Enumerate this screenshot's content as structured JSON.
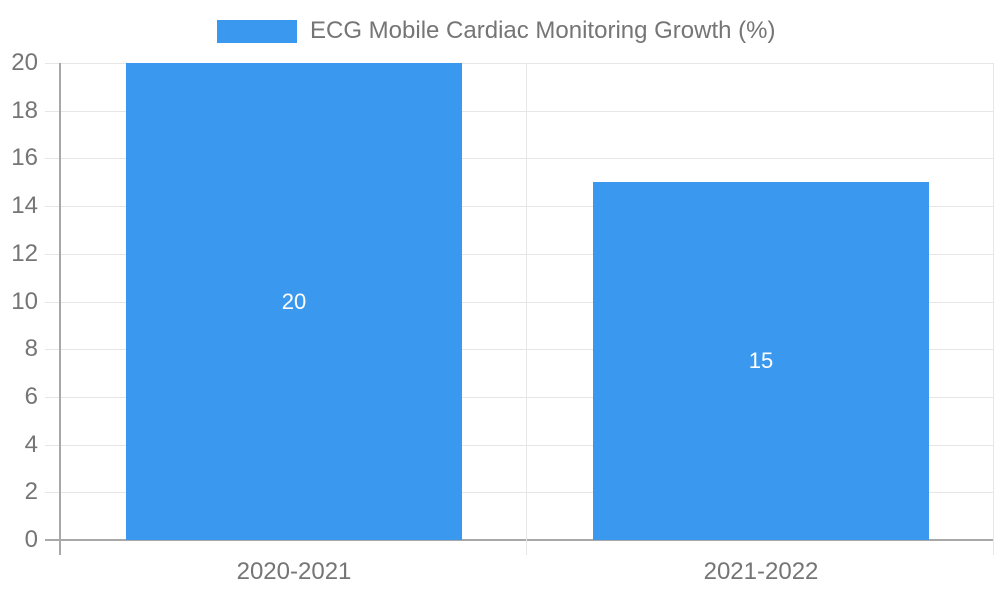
{
  "chart_data": {
    "type": "bar",
    "title": "",
    "categories": [
      "2020-2021",
      "2021-2022"
    ],
    "series": [
      {
        "name": "ECG Mobile Cardiac Monitoring Growth (%)",
        "values": [
          20,
          15
        ],
        "color": "#3a99ee"
      }
    ],
    "value_labels": [
      "20",
      "15"
    ],
    "yticks": [
      0,
      2,
      4,
      6,
      8,
      10,
      12,
      14,
      16,
      18,
      20
    ],
    "ylim": [
      0,
      20
    ],
    "xlabel": "",
    "ylabel": "",
    "grid": true,
    "legend_position": "top-center"
  },
  "legend": {
    "items": [
      {
        "label": "ECG Mobile Cardiac Monitoring Growth (%)",
        "swatch_color": "#3a99ee"
      }
    ]
  },
  "colors": {
    "background": "#ffffff",
    "bar": "#3a99ee",
    "gridline": "#e6e6e6",
    "axis_line": "#a8a8a8",
    "tick_text": "#757575",
    "value_label_text": "#ffffff"
  }
}
